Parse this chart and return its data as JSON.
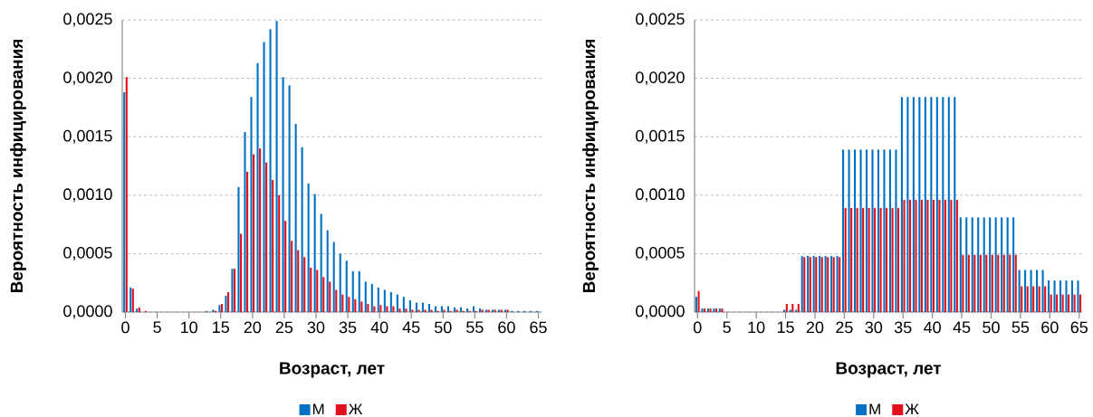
{
  "chart_data": [
    {
      "type": "bar",
      "xlabel": "Возраст, лет",
      "ylabel": "Вероятность инфицирования",
      "grid": "y",
      "legend": "bottom",
      "categories": [
        "0",
        null,
        null,
        null,
        null,
        "5",
        null,
        null,
        null,
        null,
        "10",
        null,
        null,
        null,
        null,
        "15",
        null,
        null,
        null,
        null,
        "20",
        null,
        null,
        null,
        null,
        "25",
        null,
        null,
        null,
        null,
        "30",
        null,
        null,
        null,
        null,
        "35",
        null,
        null,
        null,
        null,
        "40",
        null,
        null,
        null,
        null,
        "45",
        null,
        null,
        null,
        null,
        "50",
        null,
        null,
        null,
        null,
        "55",
        null,
        null,
        null,
        null,
        "60",
        null,
        null,
        null,
        null,
        "65"
      ],
      "ylim": [
        0,
        0.0025
      ],
      "yticks": [
        {
          "value": 0,
          "label": "0,0000"
        },
        {
          "value": 0.0005,
          "label": "0,0005"
        },
        {
          "value": 0.001,
          "label": "0,0010"
        },
        {
          "value": 0.0015,
          "label": "0,0015"
        },
        {
          "value": 0.002,
          "label": "0,0020"
        },
        {
          "value": 0.0025,
          "label": "0,0025"
        }
      ],
      "series": [
        {
          "name": "М",
          "color": "#0070c0",
          "values": [
            0.00188,
            0.00021,
            3e-05,
            0,
            0,
            0,
            0,
            0,
            0,
            0,
            0,
            0,
            0,
            1e-05,
            2e-05,
            6e-05,
            0.00014,
            0.00037,
            0.00107,
            0.00154,
            0.00184,
            0.00213,
            0.00231,
            0.00242,
            0.00249,
            0.00201,
            0.00194,
            0.00161,
            0.00141,
            0.0011,
            0.00101,
            0.00084,
            0.0007,
            0.0006,
            0.0005,
            0.00044,
            0.00035,
            0.00035,
            0.00026,
            0.00024,
            0.00021,
            0.00019,
            0.00017,
            0.00015,
            0.00013,
            0.0001,
            8e-05,
            8e-05,
            7e-05,
            5e-05,
            5e-05,
            5e-05,
            4e-05,
            4e-05,
            3e-05,
            5e-05,
            3e-05,
            2e-05,
            2e-05,
            2e-05,
            2e-05,
            1e-05,
            1e-05,
            1e-05,
            1e-05,
            1e-05
          ]
        },
        {
          "name": "Ж",
          "color": "#e2101a",
          "values": [
            0.00201,
            0.0002,
            4e-05,
            1e-05,
            0,
            0,
            0,
            0,
            0,
            0,
            0,
            0,
            0,
            0,
            1e-05,
            7e-05,
            0.00017,
            0.00037,
            0.00067,
            0.0012,
            0.00135,
            0.0014,
            0.00128,
            0.00113,
            0.001,
            0.00078,
            0.00061,
            0.00053,
            0.00047,
            0.00038,
            0.00036,
            0.0003,
            0.00026,
            0.00019,
            0.00015,
            0.00013,
            0.00011,
            9e-05,
            7e-05,
            5e-05,
            6e-05,
            5e-05,
            5e-05,
            3e-05,
            3e-05,
            2e-05,
            2e-05,
            2e-05,
            2e-05,
            1e-05,
            2e-05,
            1e-05,
            2e-05,
            1e-05,
            1e-05,
            1e-05,
            2e-05,
            2e-05,
            2e-05,
            2e-05,
            2e-05,
            0,
            0,
            0,
            0,
            0
          ]
        }
      ]
    },
    {
      "type": "bar",
      "xlabel": "Возраст, лет",
      "ylabel": "Вероятность инфицирования",
      "grid": "y",
      "legend": "bottom",
      "categories": [
        "0",
        null,
        null,
        null,
        null,
        "5",
        null,
        null,
        null,
        null,
        "10",
        null,
        null,
        null,
        null,
        "15",
        null,
        null,
        null,
        null,
        "20",
        null,
        null,
        null,
        null,
        "25",
        null,
        null,
        null,
        null,
        "30",
        null,
        null,
        null,
        null,
        "35",
        null,
        null,
        null,
        null,
        "40",
        null,
        null,
        null,
        null,
        "45",
        null,
        null,
        null,
        null,
        "50",
        null,
        null,
        null,
        null,
        "55",
        null,
        null,
        null,
        null,
        "60",
        null,
        null,
        null,
        null,
        "65"
      ],
      "ylim": [
        0,
        0.0025
      ],
      "yticks": [
        {
          "value": 0,
          "label": "0,0000"
        },
        {
          "value": 0.0005,
          "label": "0,0005"
        },
        {
          "value": 0.001,
          "label": "0,0010"
        },
        {
          "value": 0.0015,
          "label": "0,0015"
        },
        {
          "value": 0.002,
          "label": "0,0020"
        },
        {
          "value": 0.0025,
          "label": "0,0025"
        }
      ],
      "series": [
        {
          "name": "М",
          "color": "#0070c0",
          "values": [
            0.00013,
            3e-05,
            3e-05,
            3e-05,
            3e-05,
            0,
            0,
            0,
            0,
            0,
            0,
            0,
            0,
            0,
            0,
            2e-05,
            2e-05,
            2e-05,
            0.00048,
            0.00048,
            0.00048,
            0.00048,
            0.00048,
            0.00048,
            0.00048,
            0.00139,
            0.00139,
            0.00139,
            0.00139,
            0.00139,
            0.00139,
            0.00139,
            0.00139,
            0.00139,
            0.00139,
            0.00184,
            0.00184,
            0.00184,
            0.00184,
            0.00184,
            0.00184,
            0.00184,
            0.00184,
            0.00184,
            0.00184,
            0.00081,
            0.00081,
            0.00081,
            0.00081,
            0.00081,
            0.00081,
            0.00081,
            0.00081,
            0.00081,
            0.00081,
            0.00036,
            0.00036,
            0.00036,
            0.00036,
            0.00036,
            0.00027,
            0.00027,
            0.00027,
            0.00027,
            0.00027,
            0.00027
          ]
        },
        {
          "name": "Ж",
          "color": "#e2101a",
          "values": [
            0.00018,
            3e-05,
            3e-05,
            3e-05,
            3e-05,
            0,
            0,
            0,
            0,
            0,
            0,
            0,
            0,
            0,
            0,
            7e-05,
            7e-05,
            7e-05,
            0.00047,
            0.00047,
            0.00047,
            0.00047,
            0.00047,
            0.00047,
            0.00047,
            0.00089,
            0.00089,
            0.00089,
            0.00089,
            0.00089,
            0.00089,
            0.00089,
            0.00089,
            0.00089,
            0.00089,
            0.00096,
            0.00096,
            0.00096,
            0.00096,
            0.00096,
            0.00096,
            0.00096,
            0.00096,
            0.00096,
            0.00096,
            0.00049,
            0.00049,
            0.00049,
            0.00049,
            0.00049,
            0.00049,
            0.00049,
            0.00049,
            0.00049,
            0.00049,
            0.00022,
            0.00022,
            0.00022,
            0.00022,
            0.00022,
            0.00015,
            0.00015,
            0.00015,
            0.00015,
            0.00015,
            0.00015
          ]
        }
      ]
    }
  ]
}
